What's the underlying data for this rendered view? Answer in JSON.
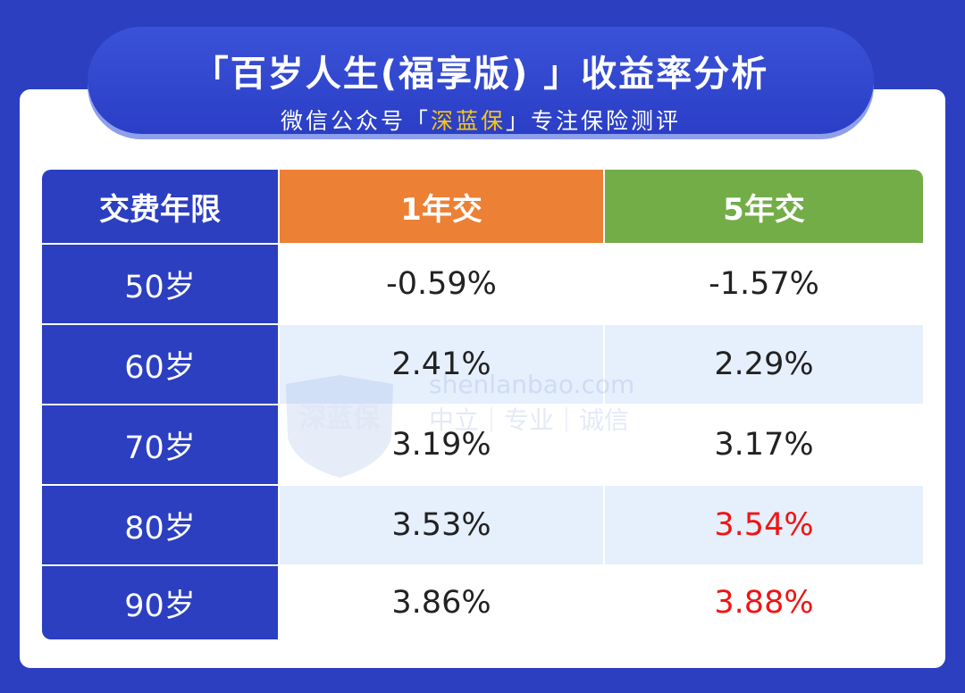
{
  "header": {
    "title": "「百岁人生(福享版) 」收益率分析",
    "subtitle_before": "微信公众号「",
    "subtitle_brand": "深蓝保",
    "subtitle_after": "」专注保险测评"
  },
  "table": {
    "columns": [
      "交费年限",
      "1年交",
      "5年交"
    ],
    "rows": [
      [
        "50岁",
        "-0.59%",
        "-1.57%"
      ],
      [
        "60岁",
        "2.41%",
        "2.29%"
      ],
      [
        "70岁",
        "3.19%",
        "3.17%"
      ],
      [
        "80岁",
        "3.53%",
        "3.54%"
      ],
      [
        "90岁",
        "3.86%",
        "3.88%"
      ]
    ]
  },
  "watermark": {
    "logo": "深蓝保",
    "site": "shenlanbao.com",
    "motto": "中立｜专业｜诚信"
  }
}
